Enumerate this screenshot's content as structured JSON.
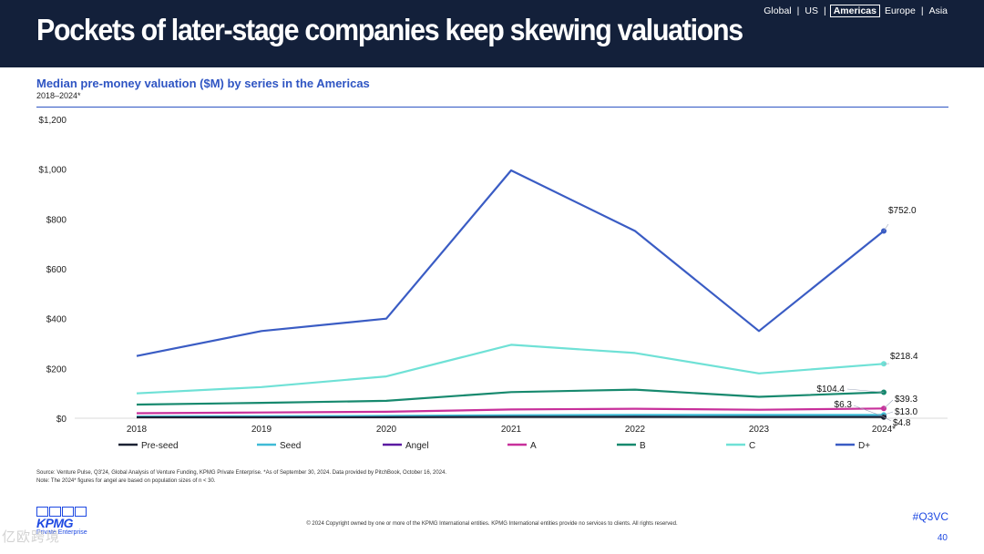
{
  "header": {
    "title": "Pockets of later-stage companies keep skewing valuations",
    "regions": [
      "Global",
      "US",
      "Americas",
      "Europe",
      "Asia"
    ],
    "active_region": "Americas"
  },
  "colors": {
    "header_bg": "#13203a",
    "accent_blue": "#2f55c3",
    "kpmg_blue": "#1e49e2"
  },
  "chart_data": {
    "type": "line",
    "title": "Median pre-money valuation ($M) by series in the Americas",
    "subtitle": "2018–2024*",
    "categories": [
      "2018",
      "2019",
      "2020",
      "2021",
      "2022",
      "2023",
      "2024*"
    ],
    "ylim": [
      0,
      1200
    ],
    "yticks": [
      0,
      200,
      400,
      600,
      800,
      1000,
      1200
    ],
    "ytick_labels": [
      "$0",
      "$200",
      "$400",
      "$600",
      "$800",
      "$1,000",
      "$1,200"
    ],
    "legend_position": "bottom",
    "series": [
      {
        "name": "Pre-seed",
        "color": "#1b2233",
        "values": [
          3.5,
          3.8,
          4.0,
          5.5,
          5.5,
          5.0,
          4.8
        ],
        "end_label": "$4.8"
      },
      {
        "name": "Seed",
        "color": "#3fbbd6",
        "values": [
          7.0,
          8.0,
          9.0,
          12.0,
          13.5,
          13.0,
          13.0
        ],
        "end_label": "$13.0"
      },
      {
        "name": "Angel",
        "color": "#5b1aa1",
        "values": [
          4.5,
          5.0,
          5.5,
          8.0,
          7.0,
          6.5,
          6.3
        ],
        "end_label": "$6.3"
      },
      {
        "name": "A",
        "color": "#c8309b",
        "values": [
          20,
          23,
          26,
          35,
          38,
          34,
          39.3
        ],
        "end_label": "$39.3"
      },
      {
        "name": "B",
        "color": "#17896e",
        "values": [
          55,
          62,
          70,
          105,
          115,
          86,
          104.4
        ],
        "end_label": "$104.4"
      },
      {
        "name": "C",
        "color": "#6fe1d6",
        "values": [
          100,
          125,
          168,
          295,
          262,
          180,
          218.4
        ],
        "end_label": "$218.4"
      },
      {
        "name": "D+",
        "color": "#3a5cc4",
        "values": [
          250,
          350,
          400,
          995,
          752,
          350,
          752.0
        ],
        "end_label": "$752.0"
      }
    ],
    "source_note": "Source: Venture Pulse, Q3'24, Global Analysis of Venture Funding, KPMG Private Enterprise. *As of September 30, 2024. Data provided by PitchBook, October 16, 2024.",
    "note": "Note: The 2024* figures for angel are based on population sizes of n < 30."
  },
  "footer": {
    "logo_text": "KPMG",
    "logo_tagline": "Private Enterprise",
    "copyright": "© 2024 Copyright owned by one or more of the KPMG International entities. KPMG International entities provide no services to clients. All rights reserved.",
    "hashtag": "#Q3VC",
    "page_number": "40"
  },
  "watermark": "亿欧跨境"
}
